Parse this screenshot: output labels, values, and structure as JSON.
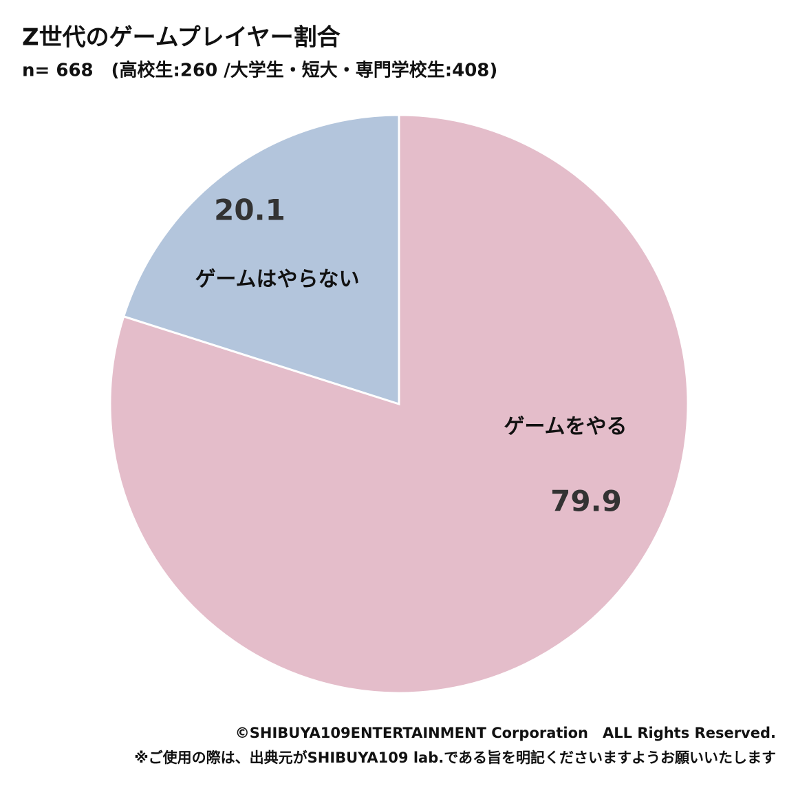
{
  "chart_data": {
    "type": "pie",
    "title": "Z世代のゲームプレイヤー割合",
    "subtitle": "n= 668　(高校生:260 /大学生・短大・専門学校生:408)",
    "categories": [
      "ゲームをやる",
      "ゲームはやらない"
    ],
    "values": [
      79.9,
      20.1
    ],
    "colors": [
      "#e4bdca",
      "#b3c5dc"
    ],
    "footer": [
      "©SHIBUYA109ENTERTAINMENT Corporation　ALL Rights Reserved.",
      "※ご使用の際は、出典元がSHIBUYA109 lab.である旨を明記くださいますようお願いいたします"
    ]
  }
}
